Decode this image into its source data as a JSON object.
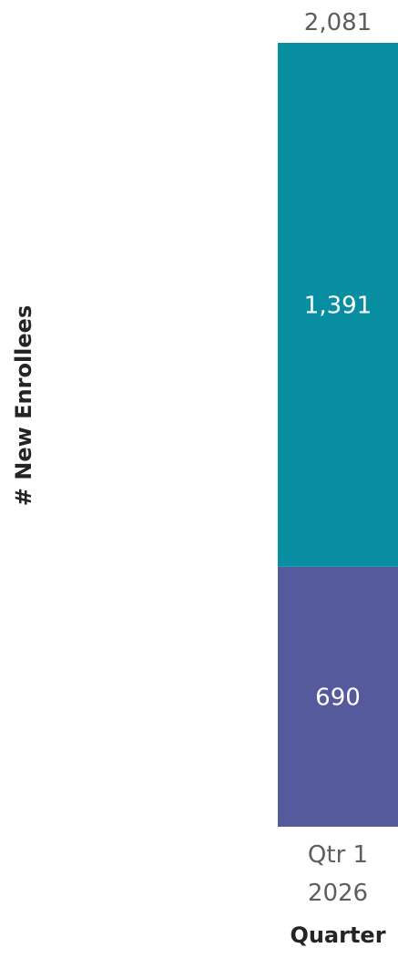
{
  "chart_data": {
    "type": "bar",
    "stacked": true,
    "orientation": "vertical",
    "title": "",
    "xlabel": "Quarter",
    "ylabel": "# New Enrollees",
    "categories": [
      [
        "Qtr 1",
        "2026"
      ]
    ],
    "series": [
      {
        "values": [
          690
        ],
        "value_labels": [
          "690"
        ],
        "color": "#555a9c"
      },
      {
        "values": [
          1391
        ],
        "value_labels": [
          "1,391"
        ],
        "color": "#078ea0"
      }
    ],
    "totals": [
      2081
    ],
    "total_labels": [
      "2,081"
    ],
    "ylim": [
      0,
      2081
    ],
    "grid": false,
    "legend": "none"
  }
}
